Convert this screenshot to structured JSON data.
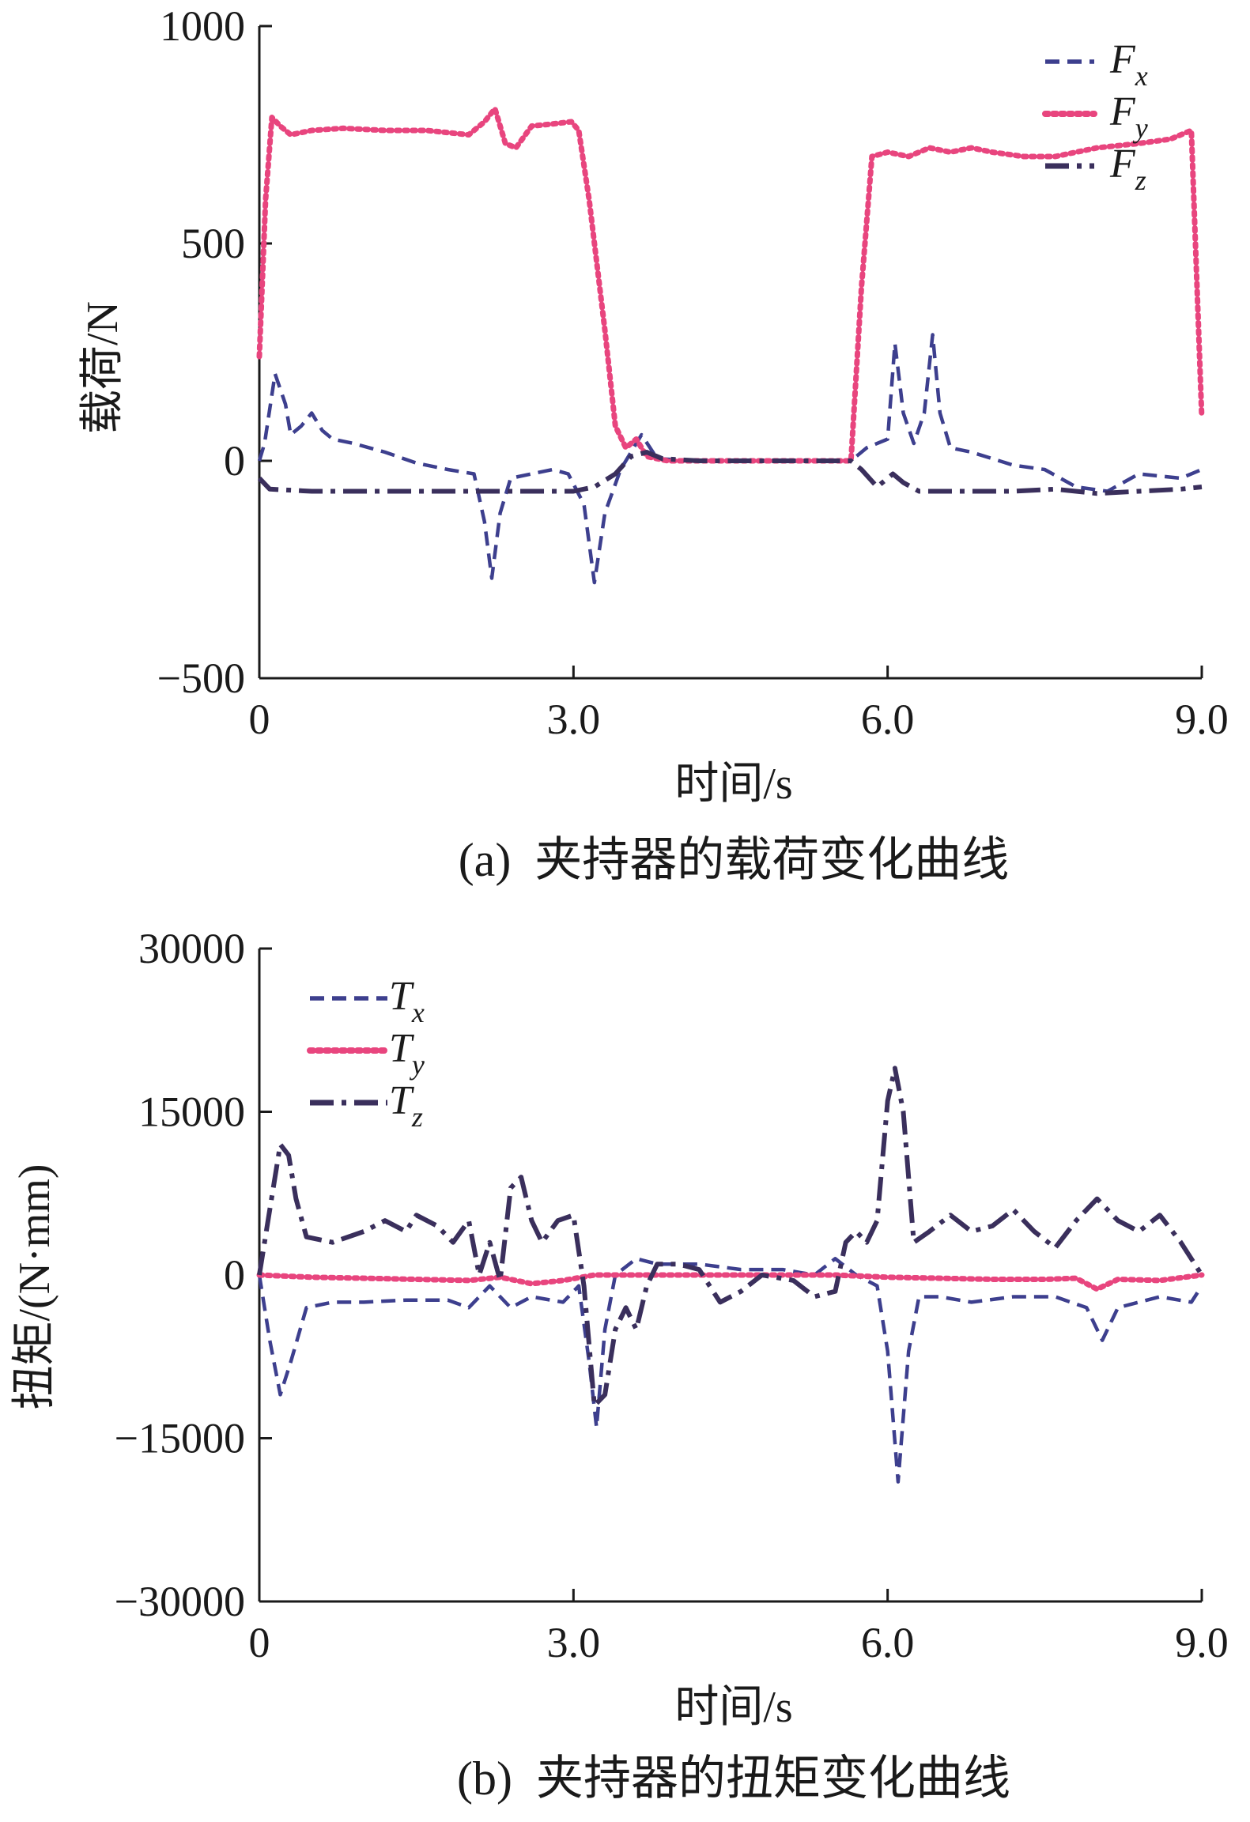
{
  "chart_data": [
    {
      "type": "line",
      "caption": "(a)  夹持器的载荷变化曲线",
      "xlabel": "时间/s",
      "ylabel": "载荷/N",
      "xlim": [
        0,
        9
      ],
      "ylim": [
        -500,
        1000
      ],
      "xticks": [
        0,
        3,
        6,
        9
      ],
      "xtick_labels": [
        "0",
        "3.0",
        "6.0",
        "9.0"
      ],
      "yticks": [
        -500,
        0,
        500,
        1000
      ],
      "ytick_labels": [
        "−500",
        "0",
        "500",
        "1000"
      ],
      "legend_position": "top-right",
      "grid": false,
      "series": [
        {
          "name": "F",
          "subscript": "x",
          "color": "#3d3f8e",
          "style": "dashed",
          "points": [
            [
              0,
              0
            ],
            [
              0.05,
              40
            ],
            [
              0.15,
              200
            ],
            [
              0.25,
              130
            ],
            [
              0.3,
              60
            ],
            [
              0.4,
              80
            ],
            [
              0.5,
              110
            ],
            [
              0.6,
              70
            ],
            [
              0.7,
              50
            ],
            [
              0.9,
              40
            ],
            [
              1.2,
              20
            ],
            [
              1.5,
              -5
            ],
            [
              1.8,
              -20
            ],
            [
              2.05,
              -30
            ],
            [
              2.15,
              -140
            ],
            [
              2.22,
              -270
            ],
            [
              2.3,
              -120
            ],
            [
              2.4,
              -40
            ],
            [
              2.6,
              -30
            ],
            [
              2.8,
              -20
            ],
            [
              2.95,
              -30
            ],
            [
              3.1,
              -100
            ],
            [
              3.2,
              -280
            ],
            [
              3.3,
              -120
            ],
            [
              3.45,
              -20
            ],
            [
              3.55,
              20
            ],
            [
              3.65,
              60
            ],
            [
              3.8,
              5
            ],
            [
              4.2,
              0
            ],
            [
              5.0,
              0
            ],
            [
              5.65,
              0
            ],
            [
              5.8,
              30
            ],
            [
              6.0,
              50
            ],
            [
              6.07,
              270
            ],
            [
              6.15,
              110
            ],
            [
              6.25,
              40
            ],
            [
              6.35,
              110
            ],
            [
              6.43,
              290
            ],
            [
              6.5,
              110
            ],
            [
              6.6,
              30
            ],
            [
              6.8,
              20
            ],
            [
              7.2,
              -10
            ],
            [
              7.5,
              -20
            ],
            [
              7.8,
              -60
            ],
            [
              8.1,
              -70
            ],
            [
              8.4,
              -30
            ],
            [
              8.8,
              -40
            ],
            [
              9.0,
              -20
            ]
          ]
        },
        {
          "name": "F",
          "subscript": "y",
          "color": "#e8457e",
          "style": "dotted",
          "points": [
            [
              0,
              240
            ],
            [
              0.06,
              600
            ],
            [
              0.12,
              790
            ],
            [
              0.2,
              770
            ],
            [
              0.3,
              750
            ],
            [
              0.5,
              760
            ],
            [
              0.8,
              765
            ],
            [
              1.2,
              760
            ],
            [
              1.6,
              760
            ],
            [
              2.0,
              750
            ],
            [
              2.15,
              780
            ],
            [
              2.25,
              810
            ],
            [
              2.35,
              730
            ],
            [
              2.45,
              720
            ],
            [
              2.6,
              770
            ],
            [
              2.8,
              775
            ],
            [
              2.98,
              780
            ],
            [
              3.05,
              760
            ],
            [
              3.15,
              600
            ],
            [
              3.3,
              300
            ],
            [
              3.4,
              80
            ],
            [
              3.5,
              30
            ],
            [
              3.6,
              50
            ],
            [
              3.7,
              10
            ],
            [
              3.9,
              0
            ],
            [
              4.5,
              0
            ],
            [
              5.0,
              0
            ],
            [
              5.65,
              0
            ],
            [
              5.75,
              400
            ],
            [
              5.85,
              700
            ],
            [
              6.0,
              710
            ],
            [
              6.2,
              700
            ],
            [
              6.4,
              720
            ],
            [
              6.6,
              710
            ],
            [
              6.8,
              720
            ],
            [
              7.0,
              710
            ],
            [
              7.3,
              700
            ],
            [
              7.6,
              700
            ],
            [
              8.0,
              720
            ],
            [
              8.4,
              730
            ],
            [
              8.7,
              740
            ],
            [
              8.9,
              760
            ],
            [
              9.0,
              100
            ]
          ]
        },
        {
          "name": "F",
          "subscript": "z",
          "color": "#3a2f5c",
          "style": "dashdot",
          "points": [
            [
              0,
              -40
            ],
            [
              0.1,
              -65
            ],
            [
              0.5,
              -70
            ],
            [
              1.0,
              -70
            ],
            [
              1.5,
              -70
            ],
            [
              2.0,
              -70
            ],
            [
              2.5,
              -70
            ],
            [
              3.0,
              -70
            ],
            [
              3.2,
              -60
            ],
            [
              3.4,
              -30
            ],
            [
              3.55,
              10
            ],
            [
              3.7,
              20
            ],
            [
              3.85,
              5
            ],
            [
              4.2,
              0
            ],
            [
              5.0,
              0
            ],
            [
              5.65,
              0
            ],
            [
              5.75,
              -20
            ],
            [
              5.9,
              -60
            ],
            [
              6.05,
              -30
            ],
            [
              6.15,
              -50
            ],
            [
              6.3,
              -70
            ],
            [
              6.8,
              -70
            ],
            [
              7.2,
              -70
            ],
            [
              7.6,
              -65
            ],
            [
              8.0,
              -75
            ],
            [
              8.4,
              -70
            ],
            [
              8.8,
              -65
            ],
            [
              9.0,
              -60
            ]
          ]
        }
      ]
    },
    {
      "type": "line",
      "caption": "(b)  夹持器的扭矩变化曲线",
      "xlabel": "时间/s",
      "ylabel": "扭矩/(N·mm)",
      "xlim": [
        0,
        9
      ],
      "ylim": [
        -30000,
        30000
      ],
      "xticks": [
        0,
        3,
        6,
        9
      ],
      "xtick_labels": [
        "0",
        "3.0",
        "6.0",
        "9.0"
      ],
      "yticks": [
        -30000,
        -15000,
        0,
        15000,
        30000
      ],
      "ytick_labels": [
        "−30000",
        "−15000",
        "0",
        "15000",
        "30000"
      ],
      "legend_position": "top-left",
      "grid": false,
      "series": [
        {
          "name": "T",
          "subscript": "x",
          "color": "#3d3f8e",
          "style": "dashed",
          "points": [
            [
              0,
              0
            ],
            [
              0.1,
              -6000
            ],
            [
              0.2,
              -11000
            ],
            [
              0.3,
              -8000
            ],
            [
              0.45,
              -3000
            ],
            [
              0.7,
              -2500
            ],
            [
              1.0,
              -2500
            ],
            [
              1.4,
              -2300
            ],
            [
              1.8,
              -2300
            ],
            [
              2.0,
              -3000
            ],
            [
              2.2,
              -1000
            ],
            [
              2.4,
              -3000
            ],
            [
              2.6,
              -2000
            ],
            [
              2.9,
              -2500
            ],
            [
              3.05,
              -1000
            ],
            [
              3.15,
              -8000
            ],
            [
              3.22,
              -14000
            ],
            [
              3.3,
              -5000
            ],
            [
              3.4,
              0
            ],
            [
              3.6,
              1500
            ],
            [
              3.8,
              1000
            ],
            [
              4.2,
              1000
            ],
            [
              4.6,
              500
            ],
            [
              5.0,
              500
            ],
            [
              5.3,
              0
            ],
            [
              5.5,
              1500
            ],
            [
              5.7,
              0
            ],
            [
              5.9,
              -1000
            ],
            [
              6.0,
              -7000
            ],
            [
              6.1,
              -19000
            ],
            [
              6.2,
              -7000
            ],
            [
              6.3,
              -2000
            ],
            [
              6.5,
              -2000
            ],
            [
              6.8,
              -2500
            ],
            [
              7.2,
              -2000
            ],
            [
              7.6,
              -2000
            ],
            [
              7.9,
              -3000
            ],
            [
              8.05,
              -6000
            ],
            [
              8.2,
              -3000
            ],
            [
              8.6,
              -2000
            ],
            [
              8.9,
              -2500
            ],
            [
              9.0,
              -1000
            ]
          ]
        },
        {
          "name": "T",
          "subscript": "y",
          "color": "#e8457e",
          "style": "dotted",
          "points": [
            [
              0,
              0
            ],
            [
              0.5,
              -200
            ],
            [
              1.0,
              -300
            ],
            [
              1.5,
              -400
            ],
            [
              2.0,
              -500
            ],
            [
              2.3,
              -200
            ],
            [
              2.6,
              -800
            ],
            [
              2.9,
              -500
            ],
            [
              3.2,
              0
            ],
            [
              3.6,
              0
            ],
            [
              4.0,
              0
            ],
            [
              4.5,
              0
            ],
            [
              5.0,
              0
            ],
            [
              5.5,
              0
            ],
            [
              6.0,
              -200
            ],
            [
              6.5,
              -300
            ],
            [
              7.0,
              -400
            ],
            [
              7.5,
              -400
            ],
            [
              7.8,
              -300
            ],
            [
              8.0,
              -1300
            ],
            [
              8.2,
              -400
            ],
            [
              8.6,
              -500
            ],
            [
              9.0,
              0
            ]
          ]
        },
        {
          "name": "T",
          "subscript": "z",
          "color": "#3a2f5c",
          "style": "dashdot",
          "points": [
            [
              0,
              0
            ],
            [
              0.1,
              6000
            ],
            [
              0.2,
              12000
            ],
            [
              0.28,
              11000
            ],
            [
              0.35,
              7000
            ],
            [
              0.45,
              3500
            ],
            [
              0.7,
              3000
            ],
            [
              1.0,
              4000
            ],
            [
              1.2,
              5000
            ],
            [
              1.4,
              4000
            ],
            [
              1.5,
              5500
            ],
            [
              1.7,
              4500
            ],
            [
              1.85,
              3000
            ],
            [
              2.0,
              5000
            ],
            [
              2.1,
              0
            ],
            [
              2.2,
              3000
            ],
            [
              2.3,
              -500
            ],
            [
              2.4,
              8000
            ],
            [
              2.5,
              9000
            ],
            [
              2.6,
              5000
            ],
            [
              2.7,
              3000
            ],
            [
              2.85,
              5000
            ],
            [
              3.0,
              5500
            ],
            [
              3.1,
              -1000
            ],
            [
              3.2,
              -12000
            ],
            [
              3.3,
              -11000
            ],
            [
              3.4,
              -5000
            ],
            [
              3.5,
              -3000
            ],
            [
              3.6,
              -5000
            ],
            [
              3.7,
              -1000
            ],
            [
              3.8,
              1000
            ],
            [
              4.0,
              1000
            ],
            [
              4.2,
              500
            ],
            [
              4.4,
              -2500
            ],
            [
              4.6,
              -1500
            ],
            [
              4.8,
              0
            ],
            [
              5.1,
              -500
            ],
            [
              5.3,
              -2000
            ],
            [
              5.5,
              -1500
            ],
            [
              5.6,
              3000
            ],
            [
              5.7,
              4000
            ],
            [
              5.8,
              3000
            ],
            [
              5.9,
              5000
            ],
            [
              6.0,
              16000
            ],
            [
              6.07,
              19000
            ],
            [
              6.15,
              15000
            ],
            [
              6.25,
              3000
            ],
            [
              6.4,
              4000
            ],
            [
              6.6,
              5500
            ],
            [
              6.8,
              4000
            ],
            [
              7.0,
              4500
            ],
            [
              7.2,
              6000
            ],
            [
              7.4,
              4000
            ],
            [
              7.6,
              2500
            ],
            [
              7.8,
              5000
            ],
            [
              8.0,
              7000
            ],
            [
              8.2,
              5000
            ],
            [
              8.4,
              4000
            ],
            [
              8.6,
              5500
            ],
            [
              8.8,
              3000
            ],
            [
              9.0,
              0
            ]
          ]
        }
      ]
    }
  ]
}
